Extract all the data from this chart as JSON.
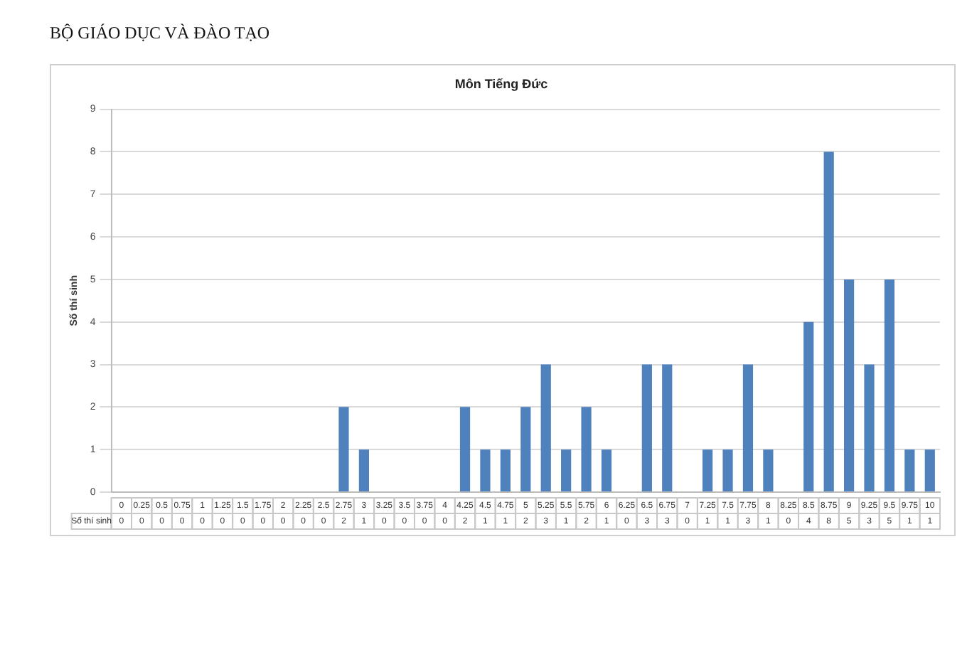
{
  "chart_data": {
    "type": "bar",
    "title": "Môn Tiếng Đức",
    "ylabel": "Số thí sinh",
    "annotations": [
      "BỘ GIÁO DỤC VÀ ĐÀO TẠO"
    ],
    "categories": [
      "0",
      "0.25",
      "0.5",
      "0.75",
      "1",
      "1.25",
      "1.5",
      "1.75",
      "2",
      "2.25",
      "2.5",
      "2.75",
      "3",
      "3.25",
      "3.5",
      "3.75",
      "4",
      "4.25",
      "4.5",
      "4.75",
      "5",
      "5.25",
      "5.5",
      "5.75",
      "6",
      "6.25",
      "6.5",
      "6.75",
      "7",
      "7.25",
      "7.5",
      "7.75",
      "8",
      "8.25",
      "8.5",
      "8.75",
      "9",
      "9.25",
      "9.5",
      "9.75",
      "10"
    ],
    "values": [
      0,
      0,
      0,
      0,
      0,
      0,
      0,
      0,
      0,
      0,
      0,
      2,
      1,
      0,
      0,
      0,
      0,
      2,
      1,
      1,
      2,
      3,
      1,
      2,
      1,
      0,
      3,
      3,
      0,
      1,
      1,
      3,
      1,
      0,
      4,
      8,
      5,
      3,
      5,
      1,
      1
    ],
    "color": "#4f81bd",
    "ylim": [
      0,
      9
    ],
    "yticks": [
      0,
      1,
      2,
      3,
      4,
      5,
      6,
      7,
      8,
      9
    ],
    "grid": "y",
    "legend": false,
    "data_labels": true
  }
}
